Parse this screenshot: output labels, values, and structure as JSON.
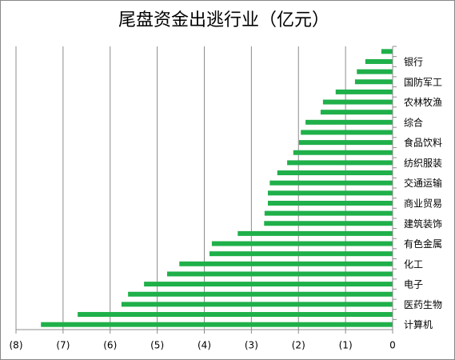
{
  "chart_data": {
    "type": "barh",
    "title": "尾盘资金出逃行业（亿元）",
    "categories": [
      null,
      "银行",
      null,
      "国防军工",
      null,
      "农林牧渔",
      null,
      "综合",
      null,
      "食品饮料",
      null,
      "纺织服装",
      null,
      "交通运输",
      null,
      "商业贸易",
      null,
      "建筑装饰",
      null,
      "有色金属",
      null,
      "化工",
      null,
      "电子",
      null,
      "医药生物",
      null,
      "计算机"
    ],
    "values": [
      -0.24,
      -0.58,
      -0.76,
      -0.8,
      -1.21,
      -1.48,
      -1.53,
      -1.85,
      -1.95,
      -1.99,
      -2.11,
      -2.24,
      -2.45,
      -2.61,
      -2.65,
      -2.65,
      -2.72,
      -2.73,
      -3.29,
      -3.84,
      -3.89,
      -4.53,
      -4.79,
      -5.28,
      -5.62,
      -5.76,
      -6.69,
      -7.47
    ],
    "color": "#1fb04a",
    "xlim": [
      -8,
      0
    ],
    "xticks": [
      {
        "value": -8,
        "label": "(8)"
      },
      {
        "value": -7,
        "label": "(7)"
      },
      {
        "value": -6,
        "label": "(6)"
      },
      {
        "value": -5,
        "label": "(5)"
      },
      {
        "value": -4,
        "label": "(4)"
      },
      {
        "value": -3,
        "label": "(3)"
      },
      {
        "value": -2,
        "label": "(2)"
      },
      {
        "value": -1,
        "label": "(1)"
      },
      0
    ],
    "grid": true
  }
}
